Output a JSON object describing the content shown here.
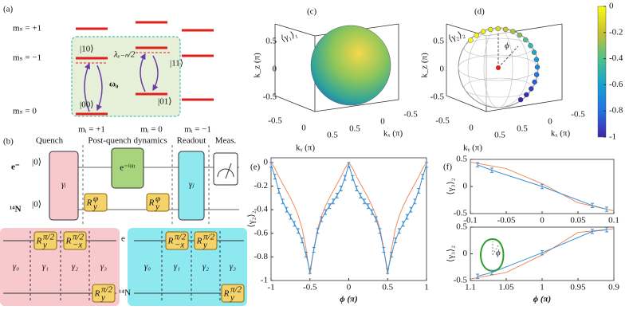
{
  "panel_a": {
    "label": "(a)",
    "ms_labels": [
      "mₛ = +1",
      "mₛ = −1",
      "mₛ = 0"
    ],
    "mi_labels": [
      "mᵢ = +1",
      "mᵢ = 0",
      "mᵢ = −1"
    ],
    "states": [
      "|10⟩",
      "|11⟩",
      "|00⟩",
      "|01⟩"
    ],
    "coupling": "λₑ₋ₙ/2",
    "frequency": "ω₀"
  },
  "panel_b": {
    "label": "(b)",
    "stages": [
      "Quench",
      "Post-quench dynamics",
      "Readout",
      "Meas."
    ],
    "qubits": [
      "e⁻",
      "¹⁴N"
    ],
    "init": [
      "|0⟩",
      "|0⟩"
    ],
    "quench_gate": "γᵢ",
    "evolution": "e⁻ⁱᴴᵗ",
    "rotation": {
      "base": "R",
      "sub": "y",
      "sup": "φ"
    },
    "readout_gate": "γⱼ",
    "left_table": {
      "columns": [
        "γ₀",
        "γ₁",
        "γ₂",
        "γ₃"
      ],
      "gates": [
        {
          "base": "R",
          "sub": "y",
          "sup": "π/2"
        },
        {
          "base": "R",
          "sub": "−x",
          "sup": "π/2"
        },
        {
          "base": "R",
          "sub": "y",
          "sup": "π/2"
        }
      ]
    },
    "right_table": {
      "rows": [
        "e",
        "¹⁴N"
      ],
      "columns": [
        "γ₀",
        "γ₁",
        "γ₂",
        "γ₃"
      ],
      "gates": [
        {
          "base": "R",
          "sub": "−x",
          "sup": "π/2"
        },
        {
          "base": "R",
          "sub": "y",
          "sup": "π/2"
        },
        {
          "base": "R",
          "sub": "y",
          "sup": "π/2"
        }
      ]
    }
  },
  "chart_data": [
    {
      "type": "sphere",
      "label": "(c)",
      "title": "⟨γ₁⟩₁",
      "xlabel": "kₓ (π)",
      "ylabel": "kᵧ (π)",
      "zlabel": "k_z (π)",
      "xticks": [
        -0.5,
        0,
        0.5
      ],
      "yticks": [
        -0.5,
        0,
        0.5
      ],
      "zticks": [
        -0.5,
        0,
        0.5
      ]
    },
    {
      "type": "sphere",
      "label": "(d)",
      "title": "⟨γ₂⟩₂",
      "annotation": "ϕ",
      "xlabel": "kₓ (π)",
      "ylabel": "kᵧ (π)",
      "zlabel": "k_z (π)",
      "xticks": [
        -0.5,
        0,
        0.5
      ],
      "yticks": [
        -0.5,
        0,
        0.5
      ],
      "zticks": [
        -0.5,
        0,
        0.5
      ],
      "values": [
        0,
        -0.02,
        -0.05,
        -0.08,
        -0.12,
        -0.18,
        -0.25,
        -0.32,
        -0.4,
        -0.48,
        -0.55,
        -0.62,
        -0.7,
        -0.78,
        -0.85,
        -0.92,
        -0.97,
        -1
      ],
      "colorbar": {
        "ylim": [
          -1,
          0
        ],
        "yticks": [
          0,
          -0.2,
          -0.4,
          -0.6,
          -0.8,
          -1
        ]
      }
    },
    {
      "type": "line",
      "label": "(e)",
      "ylabel": "⟨γ₂⟩₂",
      "xlabel": "ϕ (π)",
      "xlim": [
        -1,
        1
      ],
      "xticks": [
        -1,
        -0.5,
        0,
        0.5,
        1
      ],
      "ylim": [
        -1,
        0.04
      ],
      "yticks": [
        -1,
        -0.8,
        -0.6,
        -0.4,
        -0.2,
        0
      ],
      "series": [
        {
          "color": "#f08a5d",
          "x": [
            -1,
            -0.95,
            -0.9,
            -0.85,
            -0.8,
            -0.75,
            -0.7,
            -0.65,
            -0.6,
            -0.55,
            -0.5,
            -0.45,
            -0.4,
            -0.35,
            -0.3,
            -0.25,
            -0.2,
            -0.15,
            -0.1,
            -0.05,
            0,
            0.05,
            0.1,
            0.15,
            0.2,
            0.25,
            0.3,
            0.35,
            0.4,
            0.45,
            0.5,
            0.55,
            0.6,
            0.65,
            0.7,
            0.75,
            0.8,
            0.85,
            0.9,
            0.95,
            1
          ],
          "values": [
            0,
            -0.05,
            -0.12,
            -0.18,
            -0.24,
            -0.3,
            -0.37,
            -0.45,
            -0.56,
            -0.73,
            -0.95,
            -0.73,
            -0.56,
            -0.45,
            -0.37,
            -0.3,
            -0.24,
            -0.18,
            -0.12,
            -0.05,
            0,
            -0.05,
            -0.12,
            -0.18,
            -0.24,
            -0.3,
            -0.37,
            -0.45,
            -0.56,
            -0.73,
            -0.95,
            -0.73,
            -0.56,
            -0.45,
            -0.37,
            -0.3,
            -0.24,
            -0.18,
            -0.12,
            -0.05,
            0
          ]
        },
        {
          "color": "#3d8fd0",
          "x": [
            -1,
            -0.95,
            -0.9,
            -0.85,
            -0.8,
            -0.75,
            -0.7,
            -0.65,
            -0.6,
            -0.55,
            -0.5,
            -0.45,
            -0.4,
            -0.35,
            -0.3,
            -0.25,
            -0.2,
            -0.15,
            -0.1,
            -0.05,
            0,
            0.05,
            0.1,
            0.15,
            0.2,
            0.25,
            0.3,
            0.35,
            0.4,
            0.45,
            0.5,
            0.55,
            0.6,
            0.65,
            0.7,
            0.75,
            0.8,
            0.85,
            0.9,
            0.95,
            1
          ],
          "values": [
            -0.02,
            -0.12,
            -0.24,
            -0.33,
            -0.4,
            -0.46,
            -0.52,
            -0.58,
            -0.66,
            -0.78,
            -0.92,
            -0.74,
            -0.58,
            -0.48,
            -0.42,
            -0.37,
            -0.33,
            -0.28,
            -0.22,
            -0.13,
            -0.02,
            -0.13,
            -0.22,
            -0.28,
            -0.33,
            -0.37,
            -0.42,
            -0.48,
            -0.58,
            -0.74,
            -0.92,
            -0.78,
            -0.66,
            -0.58,
            -0.52,
            -0.46,
            -0.4,
            -0.33,
            -0.24,
            -0.12,
            -0.02
          ],
          "errors": [
            0.02,
            0.02,
            0.02,
            0.02,
            0.02,
            0.02,
            0.02,
            0.02,
            0.02,
            0.02,
            0.02,
            0.02,
            0.02,
            0.02,
            0.02,
            0.02,
            0.02,
            0.02,
            0.02,
            0.02,
            0.02,
            0.02,
            0.02,
            0.02,
            0.02,
            0.02,
            0.02,
            0.02,
            0.02,
            0.02,
            0.02,
            0.02,
            0.02,
            0.02,
            0.02,
            0.02,
            0.02,
            0.02,
            0.02,
            0.02,
            0.02
          ]
        }
      ]
    },
    {
      "type": "line",
      "label": "(f)",
      "ylabel": "⟨γ₃⟩₂",
      "xlim": [
        -0.1,
        0.1
      ],
      "xticks": [
        -0.1,
        -0.05,
        0,
        0.05,
        0.1
      ],
      "ylim": [
        -0.5,
        0.5
      ],
      "yticks": [
        -0.5,
        0,
        0.5
      ],
      "series": [
        {
          "color": "#f08a5d",
          "x": [
            -0.1,
            -0.05,
            0,
            0.05,
            0.1
          ],
          "values": [
            0.45,
            0.33,
            0.05,
            -0.3,
            -0.45
          ]
        },
        {
          "color": "#3d8fd0",
          "x": [
            -0.09,
            -0.07,
            0,
            0.07,
            0.09
          ],
          "values": [
            0.4,
            0.3,
            0,
            -0.35,
            -0.42
          ],
          "errors": [
            0.04,
            0.04,
            0.04,
            0.04,
            0.04
          ]
        }
      ]
    },
    {
      "type": "line",
      "ylabel": "⟨γ₃⟩₂",
      "xlabel": "ϕ (π)",
      "annotation": "ϕ",
      "xlim": [
        1.1,
        0.9
      ],
      "xticks": [
        1.1,
        1.05,
        1,
        0.95,
        0.9
      ],
      "ylim": [
        -0.5,
        0.5
      ],
      "yticks": [
        -0.5,
        0,
        0.5
      ],
      "series": [
        {
          "color": "#f08a5d",
          "x": [
            1.1,
            1.05,
            1,
            0.95,
            0.9
          ],
          "values": [
            -0.47,
            -0.35,
            -0.02,
            0.4,
            0.47
          ]
        },
        {
          "color": "#3d8fd0",
          "x": [
            1.09,
            1.07,
            1,
            0.93,
            0.91
          ],
          "values": [
            -0.42,
            -0.35,
            0.02,
            0.42,
            0.45
          ],
          "errors": [
            0.04,
            0.04,
            0.04,
            0.04,
            0.04
          ]
        }
      ]
    }
  ]
}
